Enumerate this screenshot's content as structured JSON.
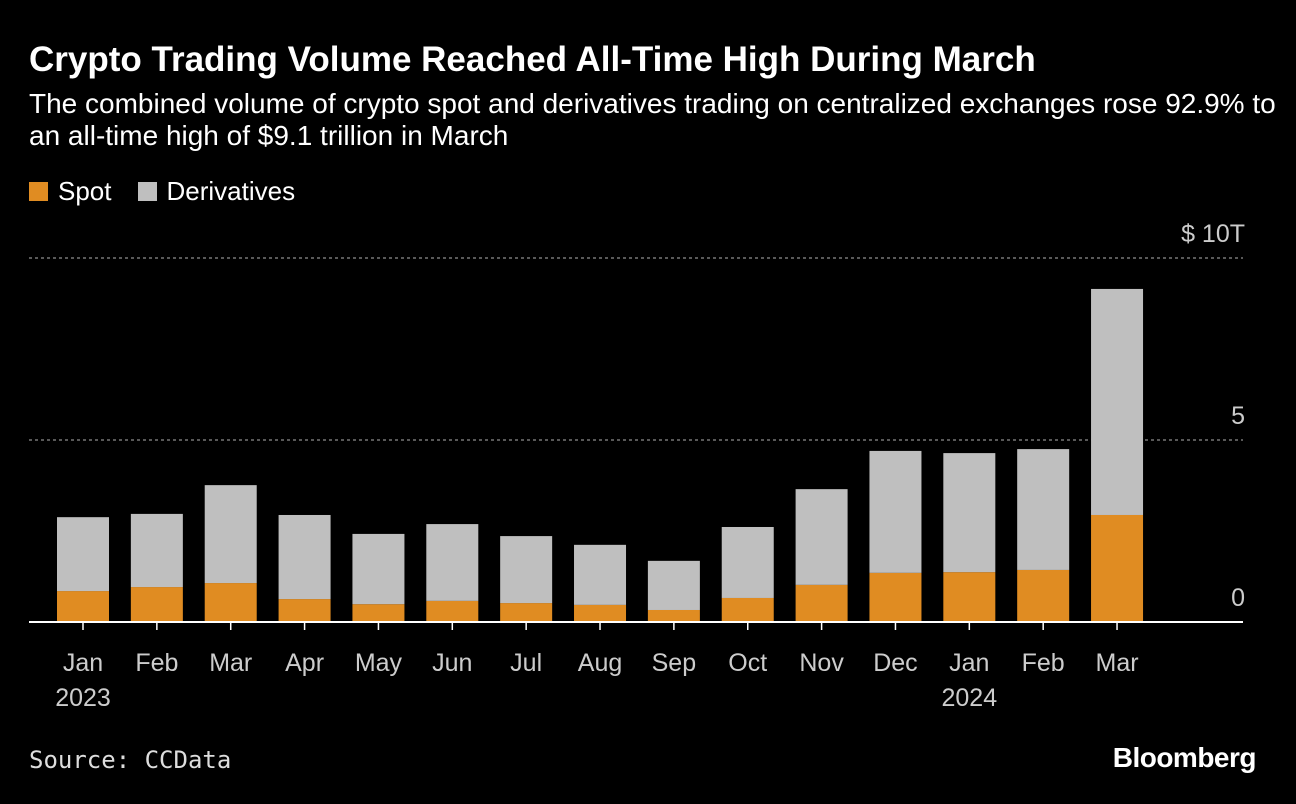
{
  "title": "Crypto Trading Volume Reached All-Time High During March",
  "subtitle": "The combined volume of crypto spot and derivatives trading on centralized exchanges rose 92.9% to an all-time high of $9.1 trillion in March",
  "source": "Source: CCData",
  "brand": "Bloomberg",
  "chart_data": {
    "type": "bar",
    "stacked": true,
    "categories": [
      "Jan 2023",
      "Feb",
      "Mar",
      "Apr",
      "May",
      "Jun",
      "Jul",
      "Aug",
      "Sep",
      "Oct",
      "Nov",
      "Dec",
      "Jan 2024",
      "Feb",
      "Mar"
    ],
    "tick_labels": [
      "Jan",
      "Feb",
      "Mar",
      "Apr",
      "May",
      "Jun",
      "Jul",
      "Aug",
      "Sep",
      "Oct",
      "Nov",
      "Dec",
      "Jan",
      "Feb",
      "Mar"
    ],
    "year_labels": [
      {
        "index": 0,
        "label": "2023"
      },
      {
        "index": 12,
        "label": "2024"
      }
    ],
    "series": [
      {
        "name": "Spot",
        "color": "#e08c22",
        "values": [
          0.85,
          0.96,
          1.07,
          0.63,
          0.49,
          0.58,
          0.52,
          0.47,
          0.33,
          0.66,
          1.02,
          1.35,
          1.37,
          1.43,
          2.94
        ]
      },
      {
        "name": "Derivatives",
        "color": "#bfbfbf",
        "values": [
          2.03,
          2.01,
          2.69,
          2.31,
          1.93,
          2.11,
          1.84,
          1.65,
          1.35,
          1.95,
          2.63,
          3.35,
          3.27,
          3.32,
          6.21
        ]
      }
    ],
    "yticks": [
      {
        "value": 0,
        "label": "0"
      },
      {
        "value": 5,
        "label": "5"
      },
      {
        "value": 10,
        "label": "$ 10T"
      }
    ],
    "ylim": [
      0,
      10
    ],
    "ylabel": "",
    "xlabel": "",
    "grid": true,
    "legend": "top-left"
  }
}
